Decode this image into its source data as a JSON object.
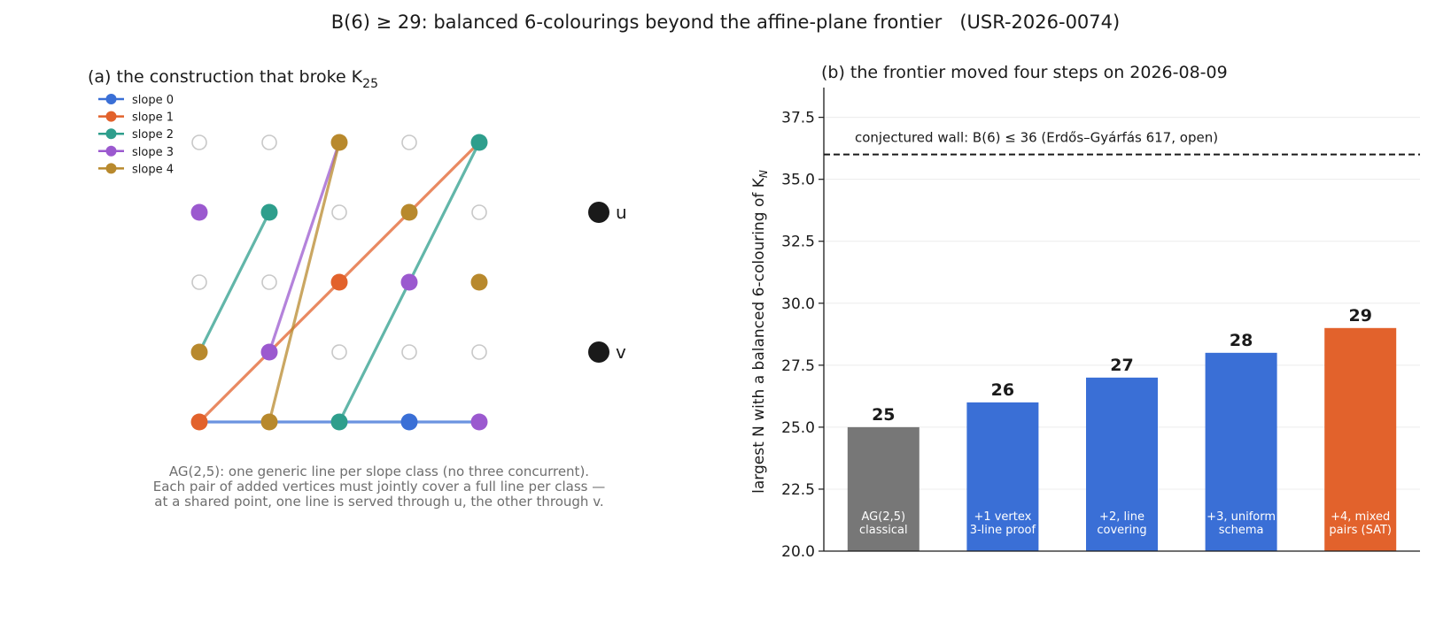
{
  "figure_title": "B(6) ≥ 29: balanced 6-colourings beyond the affine-plane frontier   (USR-2026-0074)",
  "colors": {
    "slope0": "#3a6fd6",
    "slope1": "#e2622c",
    "slope2": "#2e9e8c",
    "slope3": "#9b59cf",
    "slope4": "#b8892d",
    "baseline_bar": "#777777",
    "new_bar": "#3a6fd6",
    "highlight_bar": "#e2622c",
    "extra_vertex": "#1a1a1a",
    "empty_point": "#c8c8c8"
  },
  "chart_data": [
    {
      "type": "scatter",
      "panel": "a",
      "title_prefix": "(a) the construction that broke K",
      "title_subscript": "25",
      "legend": {
        "placement": "top-left",
        "entries": [
          {
            "label": "slope 0",
            "color_key": "slope0"
          },
          {
            "label": "slope 1",
            "color_key": "slope1"
          },
          {
            "label": "slope 2",
            "color_key": "slope2"
          },
          {
            "label": "slope 3",
            "color_key": "slope3"
          },
          {
            "label": "slope 4",
            "color_key": "slope4"
          }
        ]
      },
      "grid_size": 5,
      "colored_points": [
        {
          "x": 0,
          "y": 0,
          "slope": 1
        },
        {
          "x": 1,
          "y": 0,
          "slope": 4
        },
        {
          "x": 2,
          "y": 0,
          "slope": 2
        },
        {
          "x": 3,
          "y": 0,
          "slope": 0
        },
        {
          "x": 4,
          "y": 0,
          "slope": 3
        },
        {
          "x": 0,
          "y": 1,
          "slope": 4
        },
        {
          "x": 1,
          "y": 1,
          "slope": 3
        },
        {
          "x": 2,
          "y": 2,
          "slope": 1
        },
        {
          "x": 3,
          "y": 2,
          "slope": 3
        },
        {
          "x": 4,
          "y": 2,
          "slope": 4
        },
        {
          "x": 0,
          "y": 3,
          "slope": 3
        },
        {
          "x": 1,
          "y": 3,
          "slope": 2
        },
        {
          "x": 3,
          "y": 3,
          "slope": 4
        },
        {
          "x": 2,
          "y": 4,
          "slope": 4
        },
        {
          "x": 4,
          "y": 4,
          "slope": 2
        }
      ],
      "lines": [
        {
          "slope": 0,
          "points": [
            [
              0,
              0
            ],
            [
              4,
              0
            ]
          ]
        },
        {
          "slope": 1,
          "points": [
            [
              0,
              0
            ],
            [
              4,
              4
            ]
          ]
        },
        {
          "slope": 2,
          "points": [
            [
              0,
              1
            ],
            [
              1,
              3
            ]
          ]
        },
        {
          "slope": 2,
          "points": [
            [
              2,
              0
            ],
            [
              4,
              4
            ]
          ]
        },
        {
          "slope": 3,
          "points": [
            [
              1,
              1
            ],
            [
              2,
              4
            ]
          ]
        },
        {
          "slope": 4,
          "points": [
            [
              1,
              0
            ],
            [
              2,
              4
            ]
          ]
        }
      ],
      "extra_vertices": [
        {
          "label": "u",
          "y": 3
        },
        {
          "label": "v",
          "y": 1
        }
      ],
      "caption": [
        "AG(2,5): one generic line per slope class (no three concurrent).",
        "Each pair of added vertices must jointly cover a full line per class —",
        "at a shared point, one line is served through u, the other through v."
      ]
    },
    {
      "type": "bar",
      "panel": "b",
      "title": "(b) the frontier moved four steps on 2026-08-09",
      "ylabel_prefix": "largest N with a balanced 6-colouring of K",
      "ylabel_subscript": "N",
      "ylim": [
        20.0,
        38.7
      ],
      "yticks": [
        "20.0",
        "22.5",
        "25.0",
        "27.5",
        "30.0",
        "32.5",
        "35.0",
        "37.5"
      ],
      "ytick_values": [
        20.0,
        22.5,
        25.0,
        27.5,
        30.0,
        32.5,
        35.0,
        37.5
      ],
      "grid": "horizontal",
      "categories": [
        [
          "AG(2,5)",
          "classical"
        ],
        [
          "+1 vertex",
          "3-line proof"
        ],
        [
          "+2, line",
          "covering"
        ],
        [
          "+3, uniform",
          "schema"
        ],
        [
          "+4, mixed",
          "pairs (SAT)"
        ]
      ],
      "values": [
        25,
        26,
        27,
        28,
        29
      ],
      "value_labels": [
        "25",
        "26",
        "27",
        "28",
        "29"
      ],
      "bar_color_keys": [
        "baseline_bar",
        "new_bar",
        "new_bar",
        "new_bar",
        "highlight_bar"
      ],
      "reference_line": {
        "value": 36,
        "style": "dashed",
        "label": "conjectured wall: B(6) ≤ 36 (Erdős–Gyárfás 617, open)"
      }
    }
  ]
}
